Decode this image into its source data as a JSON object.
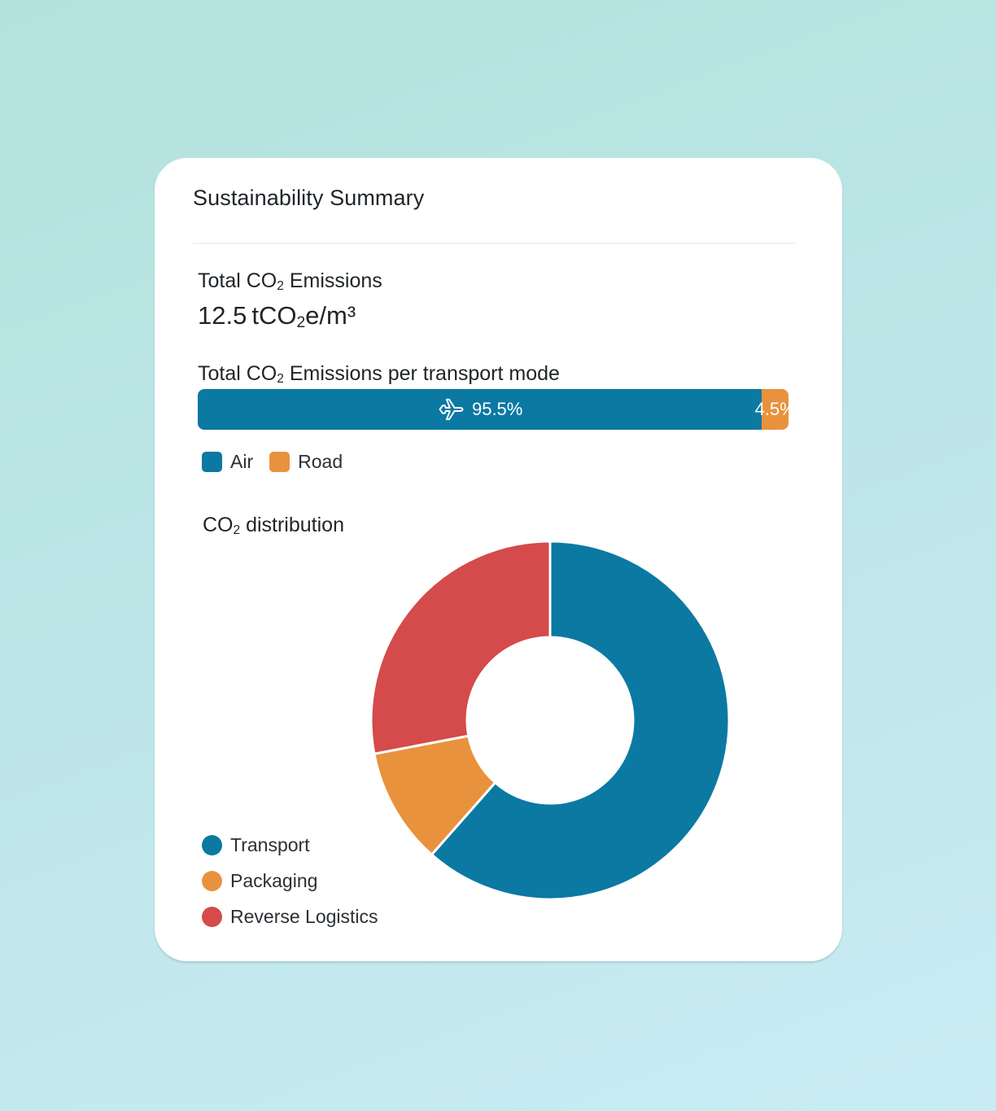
{
  "card": {
    "title": "Sustainability Summary"
  },
  "total_emissions": {
    "label_pre": "Total CO",
    "label_sub": "2",
    "label_post": " Emissions",
    "value": "12.5",
    "unit_pre": "tCO",
    "unit_sub": "2",
    "unit_post": "e/m³"
  },
  "per_mode": {
    "label_pre": "Total CO",
    "label_sub": "2",
    "label_post": " Emissions per transport mode",
    "segments": [
      {
        "key": "air",
        "name": "Air",
        "value_label": "95.5%",
        "percent": 95.5,
        "color": "#0b79a2",
        "icon": "airplane-icon"
      },
      {
        "key": "road",
        "name": "Road",
        "value_label": "4.5%",
        "percent": 4.5,
        "color": "#e9923d",
        "icon": ""
      }
    ]
  },
  "distribution": {
    "label_pre": "CO",
    "label_sub": "2",
    "label_post": " distribution"
  },
  "chart_data": {
    "type": "pie",
    "title": "CO₂ distribution",
    "categories": [
      "Transport",
      "Packaging",
      "Reverse Logistics"
    ],
    "values": [
      61.5,
      10.5,
      28
    ],
    "colors": [
      "#0b79a2",
      "#e9923d",
      "#d54a4a"
    ],
    "donut": true,
    "legend": "bottom-left"
  }
}
